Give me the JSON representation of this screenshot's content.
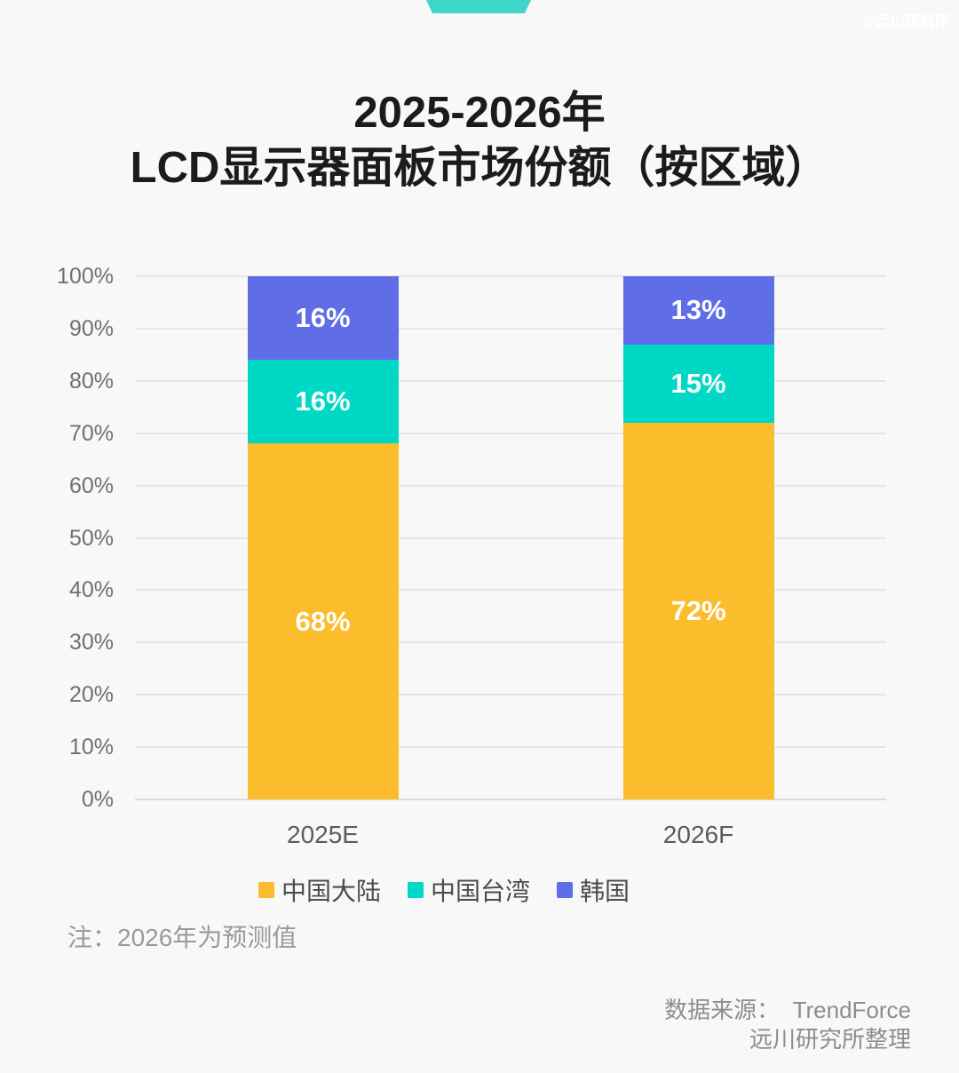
{
  "watermark": "@远川研究所",
  "title": {
    "line1": "2025-2026年",
    "line2": "LCD显示器面板市场份额（按区域）"
  },
  "note": "注：2026年为预测值",
  "source": {
    "line1": "数据来源：  TrendForce",
    "line2": "远川研究所整理"
  },
  "colors": {
    "background": "#f8f8f8",
    "ribbon": "#3ed6c8",
    "gridline": "#e6e6e6",
    "axis_label": "#707070",
    "value_label": "#ffffff"
  },
  "chart_data": {
    "type": "bar",
    "stacked": true,
    "title": "2025-2026年 LCD显示器面板市场份额（按区域）",
    "categories": [
      "2025E",
      "2026F"
    ],
    "series": [
      {
        "id": "mainland-china",
        "name": "中国大陆",
        "color": "#FBBD2B",
        "values": [
          68,
          72
        ]
      },
      {
        "id": "taiwan-china",
        "name": "中国台湾",
        "color": "#00D8C6",
        "values": [
          16,
          15
        ]
      },
      {
        "id": "south-korea",
        "name": "韩国",
        "color": "#5F6DE6",
        "values": [
          16,
          13
        ]
      }
    ],
    "ylim": [
      0,
      100
    ],
    "yticks": [
      0,
      10,
      20,
      30,
      40,
      50,
      60,
      70,
      80,
      90,
      100
    ],
    "ytick_suffix": "%",
    "grid": true,
    "legend_position": "bottom",
    "value_labels": "inside-percent"
  }
}
